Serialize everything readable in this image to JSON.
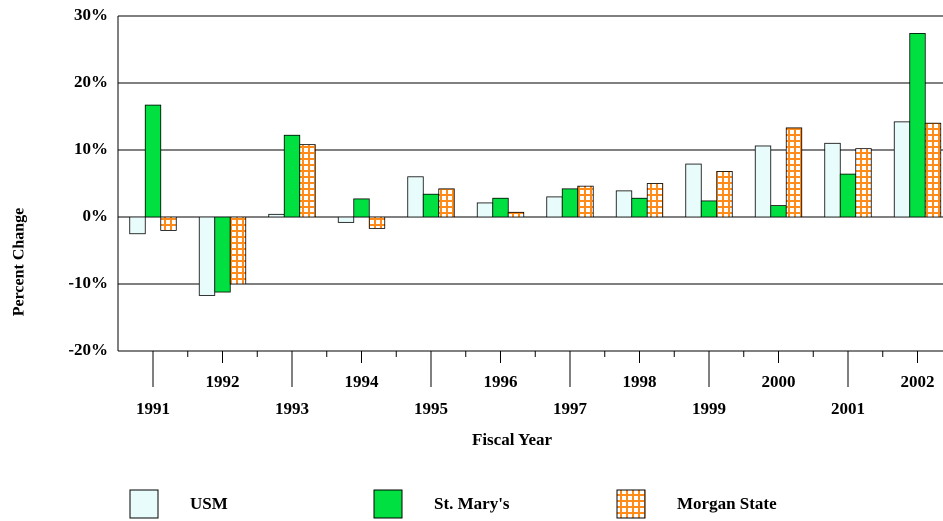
{
  "chart_data": {
    "type": "bar",
    "x_label": "Fiscal Year",
    "y_label": "Percent Change",
    "categories": [
      "1991",
      "1992",
      "1993",
      "1994",
      "1995",
      "1996",
      "1997",
      "1998",
      "1999",
      "2000",
      "2001",
      "2002"
    ],
    "series": [
      {
        "name": "USM",
        "color": "#e8fcfc",
        "values": [
          -2.5,
          -11.7,
          0.4,
          -0.8,
          6,
          2.1,
          3,
          3.9,
          7.9,
          10.6,
          11,
          14.2
        ]
      },
      {
        "name": "St. Mary's",
        "color": "#00e040",
        "values": [
          16.7,
          -11.2,
          12.2,
          2.7,
          3.4,
          2.8,
          4.2,
          2.8,
          2.4,
          1.7,
          6.4,
          27.4
        ]
      },
      {
        "name": "Morgan State",
        "color": "#ff8c1a",
        "pattern": "grid",
        "values": [
          -2,
          -10,
          10.8,
          -1.7,
          4.2,
          0.7,
          4.6,
          5,
          6.8,
          13.3,
          10.2,
          14
        ]
      }
    ],
    "ylim": [
      -20,
      30
    ],
    "yticks": [
      {
        "value": -20,
        "label": "-20%"
      },
      {
        "value": -10,
        "label": "-10%"
      },
      {
        "value": 0,
        "label": "0%"
      },
      {
        "value": 10,
        "label": "10%"
      },
      {
        "value": 20,
        "label": "20%"
      },
      {
        "value": 30,
        "label": "30%"
      }
    ],
    "grid": true,
    "legend": "bottom"
  }
}
